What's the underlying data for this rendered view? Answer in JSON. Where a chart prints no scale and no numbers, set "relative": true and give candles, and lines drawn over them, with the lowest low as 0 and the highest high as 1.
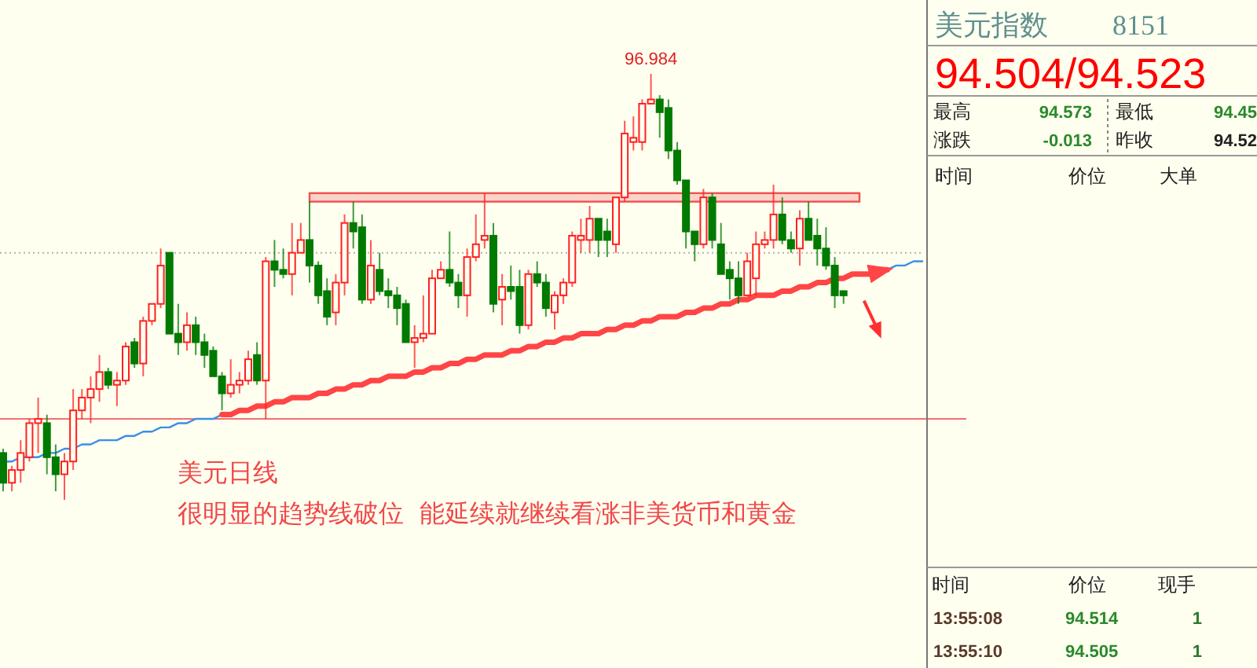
{
  "chart_data": [
    {
      "type": "candlestick",
      "relative": true,
      "categories": [
        null,
        null,
        null,
        null,
        null,
        null,
        null,
        null,
        null,
        null,
        null,
        null,
        null,
        null,
        null,
        null,
        null,
        null,
        null,
        null,
        null,
        null,
        null,
        null,
        null,
        null,
        null,
        null,
        null,
        null,
        null,
        null,
        null,
        null,
        null,
        null,
        null,
        null,
        null,
        null,
        null,
        null,
        null,
        null,
        null,
        null,
        null,
        null,
        null,
        null,
        null,
        null,
        null,
        null,
        null,
        null,
        null,
        null,
        null,
        null,
        null,
        null,
        null,
        null,
        null,
        null,
        null,
        null,
        null,
        null,
        null,
        null,
        null,
        null,
        null,
        null,
        null,
        null,
        null,
        null,
        null,
        null,
        null,
        null,
        null,
        null,
        null,
        null,
        null,
        null,
        null,
        null,
        null,
        null,
        null,
        null,
        null,
        null,
        null,
        null,
        null,
        null,
        null,
        null,
        null,
        null
      ],
      "ohlc": [
        [
          0.11,
          0.12,
          0.02,
          0.04
        ],
        [
          0.04,
          0.08,
          0.02,
          0.07
        ],
        [
          0.07,
          0.14,
          0.04,
          0.11
        ],
        [
          0.1,
          0.19,
          0.09,
          0.18
        ],
        [
          0.18,
          0.24,
          0.11,
          0.19
        ],
        [
          0.18,
          0.2,
          0.06,
          0.1
        ],
        [
          0.1,
          0.13,
          0.02,
          0.06
        ],
        [
          0.06,
          0.11,
          0,
          0.09
        ],
        [
          0.09,
          0.26,
          0.07,
          0.21
        ],
        [
          0.21,
          0.26,
          0.19,
          0.24
        ],
        [
          0.24,
          0.29,
          0.18,
          0.26
        ],
        [
          0.26,
          0.34,
          0.23,
          0.3
        ],
        [
          0.3,
          0.31,
          0.26,
          0.27
        ],
        [
          0.27,
          0.3,
          0.22,
          0.28
        ],
        [
          0.28,
          0.37,
          0.27,
          0.36
        ],
        [
          0.37,
          0.38,
          0.31,
          0.32
        ],
        [
          0.32,
          0.43,
          0.29,
          0.42
        ],
        [
          0.42,
          0.46,
          0.41,
          0.46
        ],
        [
          0.46,
          0.59,
          0.45,
          0.55
        ],
        [
          0.58,
          0.58,
          0.39,
          0.39
        ],
        [
          0.39,
          0.46,
          0.34,
          0.37
        ],
        [
          0.37,
          0.44,
          0.35,
          0.41
        ],
        [
          0.41,
          0.43,
          0.34,
          0.37
        ],
        [
          0.37,
          0.39,
          0.31,
          0.34
        ],
        [
          0.35,
          0.36,
          0.29,
          0.29
        ],
        [
          0.29,
          0.3,
          0.21,
          0.25
        ],
        [
          0.25,
          0.33,
          0.24,
          0.27
        ],
        [
          0.27,
          0.3,
          0.25,
          0.28
        ],
        [
          0.28,
          0.35,
          0.27,
          0.33
        ],
        [
          0.34,
          0.37,
          0.27,
          0.28
        ],
        [
          0.28,
          0.57,
          0.19,
          0.56
        ],
        [
          0.56,
          0.61,
          0.5,
          0.54
        ],
        [
          0.54,
          0.59,
          0.52,
          0.53
        ],
        [
          0.53,
          0.65,
          0.48,
          0.58
        ],
        [
          0.58,
          0.65,
          0.58,
          0.61
        ],
        [
          0.61,
          0.7,
          0.51,
          0.55
        ],
        [
          0.55,
          0.56,
          0.46,
          0.48
        ],
        [
          0.49,
          0.52,
          0.41,
          0.43
        ],
        [
          0.44,
          0.53,
          0.41,
          0.51
        ],
        [
          0.51,
          0.67,
          0.48,
          0.65
        ],
        [
          0.65,
          0.7,
          0.59,
          0.63
        ],
        [
          0.64,
          0.67,
          0.46,
          0.47
        ],
        [
          0.47,
          0.61,
          0.46,
          0.55
        ],
        [
          0.54,
          0.58,
          0.48,
          0.49
        ],
        [
          0.49,
          0.52,
          0.45,
          0.48
        ],
        [
          0.48,
          0.5,
          0.41,
          0.45
        ],
        [
          0.46,
          0.47,
          0.37,
          0.37
        ],
        [
          0.37,
          0.41,
          0.31,
          0.38
        ],
        [
          0.38,
          0.48,
          0.37,
          0.39
        ],
        [
          0.39,
          0.54,
          0.39,
          0.52
        ],
        [
          0.52,
          0.56,
          0.52,
          0.54
        ],
        [
          0.54,
          0.63,
          0.5,
          0.51
        ],
        [
          0.51,
          0.53,
          0.45,
          0.48
        ],
        [
          0.48,
          0.59,
          0.43,
          0.57
        ],
        [
          0.57,
          0.67,
          0.56,
          0.6
        ],
        [
          0.61,
          0.72,
          0.59,
          0.62
        ],
        [
          0.62,
          0.65,
          0.44,
          0.46
        ],
        [
          0.47,
          0.53,
          0.41,
          0.5
        ],
        [
          0.5,
          0.55,
          0.47,
          0.49
        ],
        [
          0.5,
          0.54,
          0.39,
          0.41
        ],
        [
          0.41,
          0.54,
          0.4,
          0.53
        ],
        [
          0.53,
          0.56,
          0.5,
          0.51
        ],
        [
          0.51,
          0.53,
          0.43,
          0.45
        ],
        [
          0.44,
          0.49,
          0.4,
          0.48
        ],
        [
          0.48,
          0.52,
          0.46,
          0.51
        ],
        [
          0.51,
          0.63,
          0.5,
          0.62
        ],
        [
          0.61,
          0.66,
          0.58,
          0.62
        ],
        [
          0.61,
          0.69,
          0.58,
          0.66
        ],
        [
          0.66,
          0.66,
          0.57,
          0.61
        ],
        [
          0.63,
          0.66,
          0.57,
          0.61
        ],
        [
          0.6,
          0.71,
          0.58,
          0.71
        ],
        [
          0.71,
          0.89,
          0.7,
          0.86
        ],
        [
          0.84,
          0.9,
          0.82,
          0.85
        ],
        [
          0.84,
          0.94,
          0.82,
          0.93
        ],
        [
          0.93,
          1,
          0.93,
          0.94
        ],
        [
          0.94,
          0.95,
          0.85,
          0.91
        ],
        [
          0.92,
          0.94,
          0.8,
          0.82
        ],
        [
          0.82,
          0.84,
          0.74,
          0.75
        ],
        [
          0.75,
          0.75,
          0.59,
          0.63
        ],
        [
          0.63,
          0.63,
          0.56,
          0.6
        ],
        [
          0.6,
          0.73,
          0.59,
          0.71
        ],
        [
          0.71,
          0.72,
          0.59,
          0.61
        ],
        [
          0.6,
          0.65,
          0.53,
          0.53
        ],
        [
          0.54,
          0.56,
          0.47,
          0.52
        ],
        [
          0.52,
          0.56,
          0.46,
          0.48
        ],
        [
          0.48,
          0.58,
          0.48,
          0.56
        ],
        [
          0.52,
          0.63,
          0.48,
          0.6
        ],
        [
          0.6,
          0.63,
          0.59,
          0.61
        ],
        [
          0.61,
          0.74,
          0.59,
          0.67
        ],
        [
          0.67,
          0.71,
          0.6,
          0.61
        ],
        [
          0.61,
          0.63,
          0.58,
          0.59
        ],
        [
          0.59,
          0.68,
          0.55,
          0.66
        ],
        [
          0.66,
          0.7,
          0.61,
          0.61
        ],
        [
          0.62,
          0.66,
          0.55,
          0.59
        ],
        [
          0.59,
          0.64,
          0.54,
          0.55
        ],
        [
          0.55,
          0.57,
          0.45,
          0.48
        ],
        [
          0.49,
          0.49,
          0.46,
          0.48
        ],
        null,
        null,
        null,
        null,
        null,
        null,
        null,
        null,
        null
      ],
      "series": [
        {
          "type": "line",
          "color": "#3b8ee8",
          "values": [
            0.09,
            0.09,
            0.1,
            0.1,
            0.1,
            0.11,
            0.11,
            0.12,
            0.12,
            0.13,
            0.13,
            0.14,
            0.14,
            0.14,
            0.15,
            0.15,
            0.16,
            0.16,
            0.17,
            0.17,
            0.18,
            0.18,
            0.19,
            0.19,
            0.19,
            0.2,
            null,
            null,
            null,
            null,
            null,
            null,
            null,
            null,
            null,
            null,
            null,
            null,
            null,
            null,
            null,
            null,
            null,
            null,
            null,
            null,
            null,
            null,
            null,
            null,
            null,
            null,
            null,
            null,
            null,
            null,
            null,
            null,
            null,
            null,
            null,
            null,
            null,
            null,
            null,
            null,
            null,
            null,
            null,
            null,
            null,
            null,
            null,
            null,
            null,
            null,
            null,
            null,
            null,
            null,
            null,
            null,
            null,
            null,
            null,
            null,
            null,
            null,
            null,
            null,
            null,
            null,
            null,
            null,
            null,
            null,
            null,
            null,
            null,
            null,
            null,
            0.54,
            0.55,
            0.55,
            0.56,
            0.56
          ]
        },
        {
          "type": "line",
          "color": "#ff4545",
          "values": [
            null,
            null,
            null,
            null,
            null,
            null,
            null,
            null,
            null,
            null,
            null,
            null,
            null,
            null,
            null,
            null,
            null,
            null,
            null,
            null,
            null,
            null,
            null,
            null,
            null,
            0.2,
            0.2,
            0.21,
            0.21,
            0.22,
            0.22,
            0.23,
            0.23,
            0.24,
            0.24,
            0.24,
            0.25,
            0.25,
            0.26,
            0.26,
            0.27,
            0.27,
            0.28,
            0.28,
            0.29,
            0.29,
            0.29,
            0.3,
            0.3,
            0.31,
            0.31,
            0.32,
            0.32,
            0.33,
            0.33,
            0.34,
            0.34,
            0.34,
            0.35,
            0.35,
            0.36,
            0.36,
            0.37,
            0.37,
            0.38,
            0.38,
            0.39,
            0.39,
            0.39,
            0.4,
            0.4,
            0.41,
            0.41,
            0.42,
            0.42,
            0.43,
            0.43,
            0.43,
            0.44,
            0.44,
            0.45,
            0.45,
            0.46,
            0.46,
            0.47,
            0.47,
            0.48,
            0.48,
            0.48,
            0.49,
            0.49,
            0.5,
            0.5,
            0.51,
            0.51,
            0.52,
            0.52,
            0.53,
            0.53,
            0.53,
            0.54,
            0.54,
            null,
            null,
            null,
            null
          ]
        }
      ],
      "ref_lines": [
        {
          "axis": "y",
          "value": 0.58,
          "color": "#b0b0b0",
          "line_style": "dotted"
        },
        {
          "axis": "y",
          "value": 0.19,
          "color": "#f07070",
          "line_style": "solid"
        }
      ],
      "bands": [
        {
          "axis": "y",
          "from": 0.7,
          "to": 0.72,
          "color": "#f05050"
        }
      ],
      "annotations": [
        "96.984",
        "美元日线",
        "很明显的趋势线破位  能延续就继续看涨非美货币和黄金"
      ]
    },
    {
      "type": "other",
      "title": "美元指数",
      "subtitle": "8151",
      "annotations": [
        "94.504/94.523",
        "最高",
        "94.573",
        "最低",
        "94.45",
        "涨跌",
        "-0.013",
        "昨收",
        "94.52",
        "时间",
        "价位",
        "大单",
        "时间",
        "价位",
        "现手",
        "13:55:08",
        "94.514",
        "1",
        "13:55:10",
        "94.505",
        "1"
      ]
    }
  ]
}
